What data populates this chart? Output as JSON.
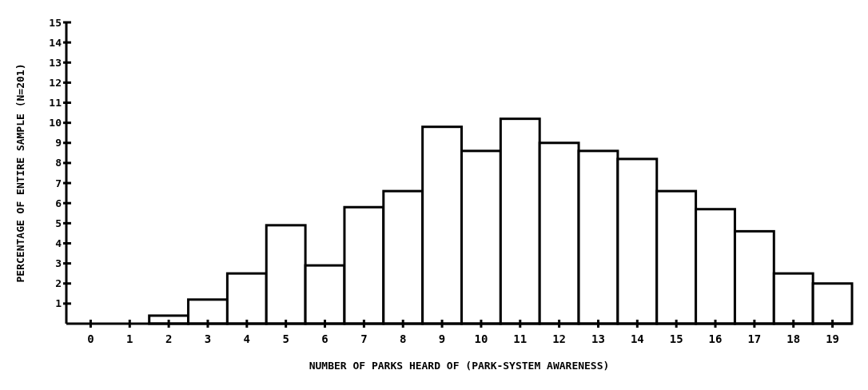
{
  "chart_data": {
    "type": "bar",
    "xlabel": "NUMBER OF PARKS HEARD OF (PARK-SYSTEM AWARENESS)",
    "ylabel": "PERCENTAGE OF ENTIRE SAMPLE (N=201)",
    "categories": [
      "0",
      "1",
      "2",
      "3",
      "4",
      "5",
      "6",
      "7",
      "8",
      "9",
      "10",
      "11",
      "12",
      "13",
      "14",
      "15",
      "16",
      "17",
      "18",
      "19"
    ],
    "values": [
      0,
      0,
      0.4,
      1.2,
      2.5,
      4.9,
      2.9,
      5.8,
      6.6,
      9.8,
      8.6,
      10.2,
      9.0,
      8.6,
      8.2,
      6.6,
      5.7,
      4.6,
      2.5,
      2.0
    ],
    "color": "#ffffff",
    "ylim": [
      0,
      15
    ],
    "yticks": [
      1,
      2,
      3,
      4,
      5,
      6,
      7,
      8,
      9,
      10,
      11,
      12,
      13,
      14,
      15
    ]
  }
}
